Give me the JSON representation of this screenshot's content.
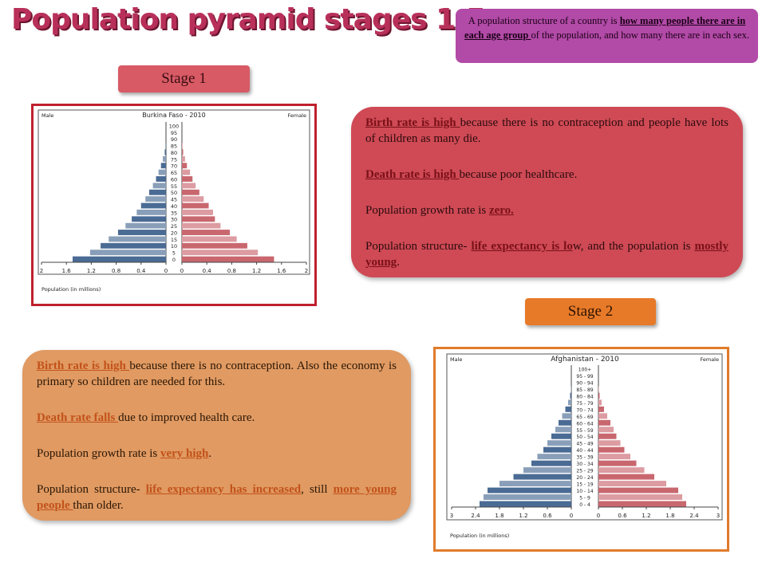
{
  "title": "Population pyramid stages 1-5",
  "definition": {
    "pre": "A population structure of a country is ",
    "hl": "how many people there are in each age group ",
    "post": "of the population, and how many there are in each sex."
  },
  "stage1_label": "Stage 1",
  "stage2_label": "Stage 2",
  "info1": {
    "p1_hl": "Birth rate is high ",
    "p1_rest": "because there is no contraception and people have lots of children as many die.",
    "p2_hl": "Death rate is high ",
    "p2_rest": "because poor healthcare.",
    "p3_pre": "Population growth rate is ",
    "p3_hl": "zero.",
    "p4_pre": "Population structure- ",
    "p4_hl1": "life expectancy is lo",
    "p4_mid": "w, and the population is ",
    "p4_hl2": "mostly young",
    "p4_end": "."
  },
  "info2": {
    "p1_hl": "Birth rate is high ",
    "p1_rest": "because there is no contraception. Also the economy is primary so children are needed for this.",
    "p2_hl": "Death rate falls ",
    "p2_rest": "due to improved health care.",
    "p3_pre": "Population growth rate is ",
    "p3_hl": "very high",
    "p3_end": ".",
    "p4_pre": "Population structure- ",
    "p4_hl1": "life expectancy has increased",
    "p4_mid": ", still ",
    "p4_hl2": "more young people ",
    "p4_end": "than older."
  },
  "chart_data": [
    {
      "type": "bar",
      "orientation": "horizontal-pyramid",
      "title": "Burkina Faso - 2010",
      "left_label": "Male",
      "right_label": "Female",
      "xlabel": "Population (in millions)",
      "categories": [
        "0",
        "5",
        "10",
        "15",
        "20",
        "25",
        "30",
        "35",
        "40",
        "45",
        "50",
        "55",
        "60",
        "65",
        "70",
        "75",
        "80",
        "85",
        "90",
        "95",
        "100"
      ],
      "series": [
        {
          "name": "Male",
          "color": "#4a6b94",
          "values": [
            1.5,
            1.22,
            1.05,
            0.92,
            0.77,
            0.65,
            0.55,
            0.47,
            0.4,
            0.33,
            0.27,
            0.21,
            0.16,
            0.12,
            0.08,
            0.05,
            0.02,
            0.01,
            0,
            0,
            0
          ]
        },
        {
          "name": "Female",
          "color": "#c9676f",
          "values": [
            1.48,
            1.22,
            1.05,
            0.88,
            0.77,
            0.62,
            0.53,
            0.5,
            0.43,
            0.35,
            0.28,
            0.22,
            0.17,
            0.13,
            0.08,
            0.05,
            0.02,
            0.01,
            0,
            0,
            0
          ]
        }
      ],
      "xticks": [
        "2",
        "1.6",
        "1.2",
        "0.8",
        "0.4",
        "0",
        "0",
        "0.4",
        "0.8",
        "1.2",
        "1.6",
        "2"
      ],
      "xlim": [
        0,
        2
      ]
    },
    {
      "type": "bar",
      "orientation": "horizontal-pyramid",
      "title": "Afghanistan - 2010",
      "left_label": "Male",
      "right_label": "Female",
      "xlabel": "Population (in millions)",
      "categories": [
        "0 - 4",
        "5 - 9",
        "10 - 14",
        "15 - 19",
        "20 - 24",
        "25 - 29",
        "30 - 34",
        "35 - 39",
        "40 - 44",
        "45 - 49",
        "50 - 54",
        "55 - 59",
        "60 - 64",
        "65 - 69",
        "70 - 74",
        "75 - 79",
        "80 - 84",
        "85 - 89",
        "90 - 94",
        "95 - 99",
        "100+"
      ],
      "series": [
        {
          "name": "Male",
          "color": "#4a6b94",
          "values": [
            2.3,
            2.2,
            2.1,
            1.8,
            1.45,
            1.2,
            1.0,
            0.85,
            0.7,
            0.6,
            0.5,
            0.4,
            0.32,
            0.23,
            0.15,
            0.08,
            0.03,
            0.01,
            0,
            0,
            0
          ]
        },
        {
          "name": "Female",
          "color": "#c9676f",
          "values": [
            2.2,
            2.1,
            2.0,
            1.7,
            1.4,
            1.15,
            0.95,
            0.8,
            0.65,
            0.55,
            0.45,
            0.38,
            0.3,
            0.22,
            0.14,
            0.08,
            0.03,
            0.01,
            0,
            0,
            0
          ]
        }
      ],
      "xticks": [
        "3",
        "2.4",
        "1.8",
        "1.2",
        "0.6",
        "0",
        "0",
        "0.6",
        "1.2",
        "1.8",
        "2.4",
        "3"
      ],
      "xlim": [
        0,
        3
      ]
    }
  ]
}
